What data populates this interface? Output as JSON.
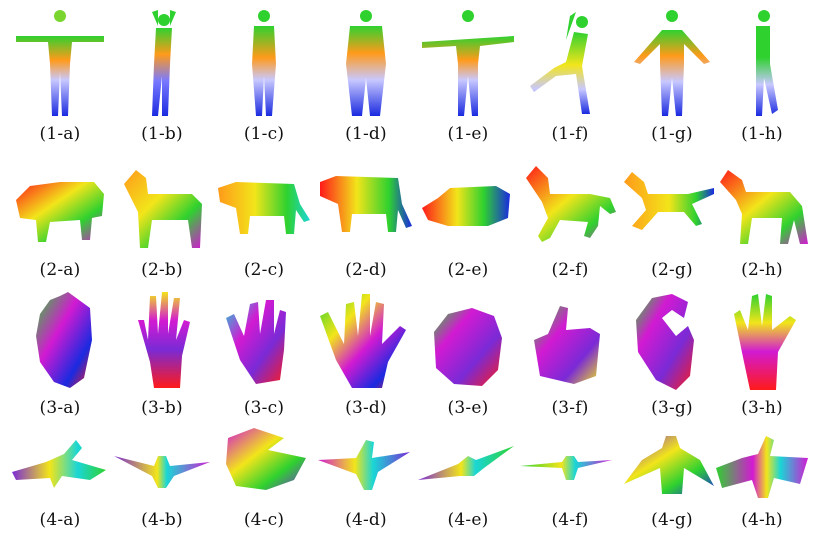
{
  "figure": {
    "rows": [
      {
        "group": "human",
        "items": [
          {
            "label": "(1-a)",
            "pose": "t-pose"
          },
          {
            "label": "(1-b)",
            "pose": "arms-raised"
          },
          {
            "label": "(1-c)",
            "pose": "standing"
          },
          {
            "label": "(1-d)",
            "pose": "standing"
          },
          {
            "label": "(1-e)",
            "pose": "t-pose"
          },
          {
            "label": "(1-f)",
            "pose": "leaning"
          },
          {
            "label": "(1-g)",
            "pose": "a-pose"
          },
          {
            "label": "(1-h)",
            "pose": "walking"
          }
        ]
      },
      {
        "group": "quadruped",
        "items": [
          {
            "label": "(2-a)",
            "pose": "bull"
          },
          {
            "label": "(2-b)",
            "pose": "dog"
          },
          {
            "label": "(2-c)",
            "pose": "cat"
          },
          {
            "label": "(2-d)",
            "pose": "cat"
          },
          {
            "label": "(2-e)",
            "pose": "pig-lying"
          },
          {
            "label": "(2-f)",
            "pose": "horse-rearing"
          },
          {
            "label": "(2-g)",
            "pose": "horse-running"
          },
          {
            "label": "(2-h)",
            "pose": "horse-standing"
          }
        ]
      },
      {
        "group": "hand",
        "items": [
          {
            "label": "(3-a)",
            "pose": "hand-curled"
          },
          {
            "label": "(3-b)",
            "pose": "hand-open"
          },
          {
            "label": "(3-c)",
            "pose": "hand-open"
          },
          {
            "label": "(3-d)",
            "pose": "hand-open"
          },
          {
            "label": "(3-e)",
            "pose": "fist"
          },
          {
            "label": "(3-f)",
            "pose": "thumb-up"
          },
          {
            "label": "(3-g)",
            "pose": "pinch"
          },
          {
            "label": "(3-h)",
            "pose": "hand-side"
          }
        ]
      },
      {
        "group": "bird",
        "items": [
          {
            "label": "(4-a)",
            "pose": "wings-spread"
          },
          {
            "label": "(4-b)",
            "pose": "wings-spread"
          },
          {
            "label": "(4-c)",
            "pose": "wings-folded"
          },
          {
            "label": "(4-d)",
            "pose": "wings-spread"
          },
          {
            "label": "(4-e)",
            "pose": "feathered"
          },
          {
            "label": "(4-f)",
            "pose": "wings-flat"
          },
          {
            "label": "(4-g)",
            "pose": "perched"
          },
          {
            "label": "(4-h)",
            "pose": "wings-up"
          }
        ]
      }
    ],
    "palette": {
      "red": "#ff1a1a",
      "orange": "#ff9a1a",
      "yellow": "#f2e51a",
      "green": "#2fd12f",
      "cyan": "#1ad6d6",
      "blue": "#1a2ae0",
      "lavender": "#c8c8ff",
      "magenta": "#d21ad2",
      "purple": "#7a2ad6"
    }
  }
}
